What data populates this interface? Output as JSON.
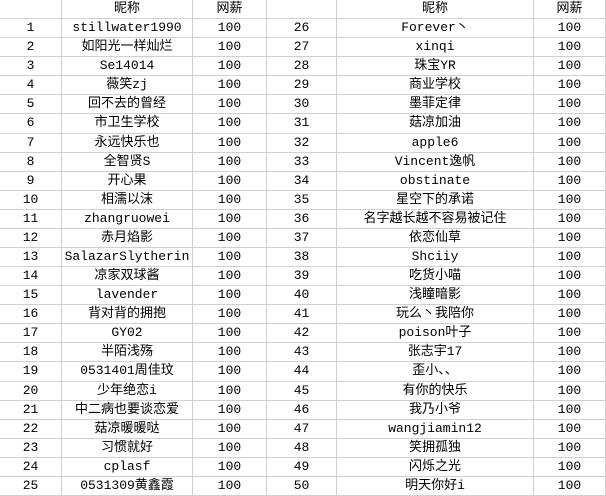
{
  "table": {
    "headers": {
      "nickname": "昵称",
      "salary": "网薪"
    },
    "left": [
      {
        "no": "1",
        "name": "stillwater1990",
        "pay": "100"
      },
      {
        "no": "2",
        "name": "如阳光一样灿烂",
        "pay": "100"
      },
      {
        "no": "3",
        "name": "Se14014",
        "pay": "100"
      },
      {
        "no": "4",
        "name": "薇笑zj",
        "pay": "100"
      },
      {
        "no": "5",
        "name": "回不去的曾经",
        "pay": "100"
      },
      {
        "no": "6",
        "name": "市卫生学校",
        "pay": "100"
      },
      {
        "no": "7",
        "name": "永远快乐也",
        "pay": "100"
      },
      {
        "no": "8",
        "name": "全智贤S",
        "pay": "100"
      },
      {
        "no": "9",
        "name": "开心果",
        "pay": "100"
      },
      {
        "no": "10",
        "name": "相濡以沫",
        "pay": "100"
      },
      {
        "no": "11",
        "name": "zhangruowei",
        "pay": "100"
      },
      {
        "no": "12",
        "name": "赤月焰影",
        "pay": "100"
      },
      {
        "no": "13",
        "name": "SalazarSlytherin",
        "pay": "100"
      },
      {
        "no": "14",
        "name": "凉家双球酱",
        "pay": "100"
      },
      {
        "no": "15",
        "name": "lavender",
        "pay": "100"
      },
      {
        "no": "16",
        "name": "背对背的拥抱",
        "pay": "100"
      },
      {
        "no": "17",
        "name": "GY02",
        "pay": "100"
      },
      {
        "no": "18",
        "name": "半陌浅殇",
        "pay": "100"
      },
      {
        "no": "19",
        "name": "0531401周佳玟",
        "pay": "100"
      },
      {
        "no": "20",
        "name": "少年绝恋i",
        "pay": "100"
      },
      {
        "no": "21",
        "name": "中二病也要谈恋爱",
        "pay": "100"
      },
      {
        "no": "22",
        "name": "菇凉暖暖哒",
        "pay": "100"
      },
      {
        "no": "23",
        "name": "习惯就好",
        "pay": "100"
      },
      {
        "no": "24",
        "name": "cplasf",
        "pay": "100"
      },
      {
        "no": "25",
        "name": "0531309黄鑫霞",
        "pay": "100"
      }
    ],
    "right": [
      {
        "no": "26",
        "name": "Forever丶",
        "pay": "100"
      },
      {
        "no": "27",
        "name": "xinqi",
        "pay": "100"
      },
      {
        "no": "28",
        "name": "珠宝YR",
        "pay": "100"
      },
      {
        "no": "29",
        "name": "商业学校",
        "pay": "100"
      },
      {
        "no": "30",
        "name": "墨菲定律",
        "pay": "100"
      },
      {
        "no": "31",
        "name": "菇凉加油",
        "pay": "100"
      },
      {
        "no": "32",
        "name": "apple6",
        "pay": "100"
      },
      {
        "no": "33",
        "name": "Vincent逸帆",
        "pay": "100"
      },
      {
        "no": "34",
        "name": "obstinate",
        "pay": "100"
      },
      {
        "no": "35",
        "name": "星空下的承诺",
        "pay": "100"
      },
      {
        "no": "36",
        "name": "名字越长越不容易被记住",
        "pay": "100"
      },
      {
        "no": "37",
        "name": "依恋仙草",
        "pay": "100"
      },
      {
        "no": "38",
        "name": "Shciiy",
        "pay": "100"
      },
      {
        "no": "39",
        "name": "吃货小喵",
        "pay": "100"
      },
      {
        "no": "40",
        "name": "浅瞳暗影",
        "pay": "100"
      },
      {
        "no": "41",
        "name": "玩么丶我陪你",
        "pay": "100"
      },
      {
        "no": "42",
        "name": "poison叶子",
        "pay": "100"
      },
      {
        "no": "43",
        "name": "张志宇17",
        "pay": "100"
      },
      {
        "no": "44",
        "name": "歪小、、",
        "pay": "100"
      },
      {
        "no": "45",
        "name": "有你的快乐",
        "pay": "100"
      },
      {
        "no": "46",
        "name": "我乃小爷",
        "pay": "100"
      },
      {
        "no": "47",
        "name": "wangjiamin12",
        "pay": "100"
      },
      {
        "no": "48",
        "name": "笑拥孤独",
        "pay": "100"
      },
      {
        "no": "49",
        "name": "闪烁之光",
        "pay": "100"
      },
      {
        "no": "50",
        "name": "明天你好i",
        "pay": "100"
      }
    ]
  },
  "colors": {
    "gridline": "#d0d0d0",
    "background": "#ffffff",
    "text": "#000000"
  }
}
